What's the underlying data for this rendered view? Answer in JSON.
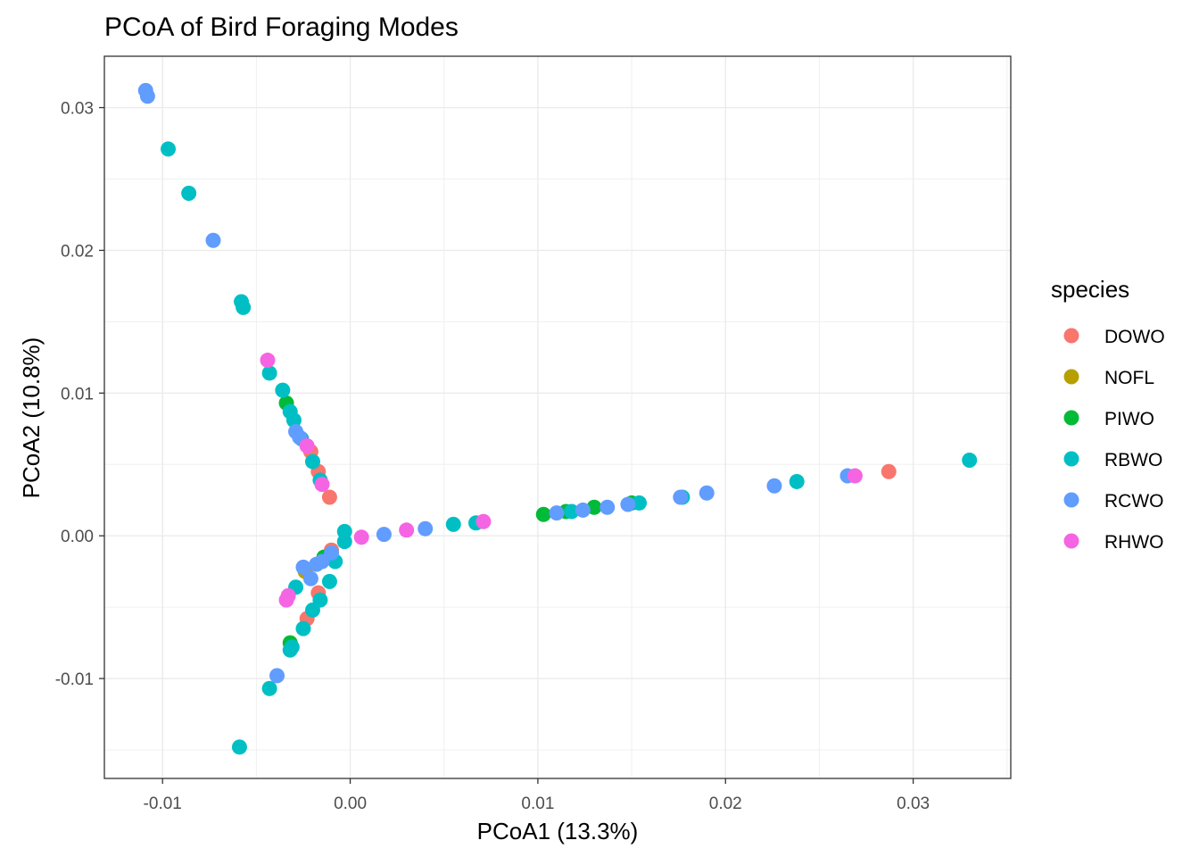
{
  "chart_data": {
    "type": "scatter",
    "title": "PCoA of Bird Foraging Modes",
    "xlabel": "PCoA1 (13.3%)",
    "ylabel": "PCoA2 (10.8%)",
    "xlim": [
      -0.0131,
      0.0352
    ],
    "ylim": [
      -0.017,
      0.0336
    ],
    "x_ticks": [
      -0.01,
      0.0,
      0.01,
      0.02,
      0.03
    ],
    "x_tick_labels": [
      "-0.01",
      "0.00",
      "0.01",
      "0.02",
      "0.03"
    ],
    "y_ticks": [
      -0.01,
      0.0,
      0.01,
      0.02,
      0.03
    ],
    "y_tick_labels": [
      "-0.01",
      "0.00",
      "0.01",
      "0.02",
      "0.03"
    ],
    "grid": true,
    "legend": {
      "title": "species",
      "position": "right"
    },
    "series": [
      {
        "name": "DOWO",
        "color": "#F8766D",
        "points": [
          [
            0.0287,
            0.0045
          ],
          [
            -0.0011,
            0.0027
          ],
          [
            -0.0017,
            0.0045
          ],
          [
            -0.0021,
            0.0059
          ],
          [
            -0.001,
            -0.001
          ],
          [
            -0.0017,
            -0.004
          ],
          [
            -0.0023,
            -0.0058
          ],
          [
            -0.0013,
            -0.0015
          ]
        ]
      },
      {
        "name": "NOFL",
        "color": "#B79F00",
        "points": [
          [
            -0.0024,
            -0.0025
          ]
        ]
      },
      {
        "name": "PIWO",
        "color": "#00BA38",
        "points": [
          [
            0.0103,
            0.0015
          ],
          [
            0.0115,
            0.0017
          ],
          [
            0.013,
            0.002
          ],
          [
            0.015,
            0.0023
          ],
          [
            -0.0034,
            0.0093
          ],
          [
            -0.0014,
            -0.0015
          ],
          [
            -0.0032,
            -0.0075
          ]
        ]
      },
      {
        "name": "RBWO",
        "color": "#00BFC4",
        "points": [
          [
            -0.0097,
            0.0271
          ],
          [
            -0.0086,
            0.024
          ],
          [
            -0.0058,
            0.0164
          ],
          [
            -0.0057,
            0.016
          ],
          [
            -0.0043,
            0.0114
          ],
          [
            -0.0036,
            0.0102
          ],
          [
            -0.0032,
            0.0087
          ],
          [
            -0.003,
            0.0081
          ],
          [
            -0.0026,
            0.0068
          ],
          [
            -0.002,
            0.0052
          ],
          [
            -0.0016,
            0.0039
          ],
          [
            -0.0003,
            0.0003
          ],
          [
            -0.0003,
            -0.0004
          ],
          [
            -0.0008,
            -0.0018
          ],
          [
            -0.0011,
            -0.0032
          ],
          [
            -0.0016,
            -0.0045
          ],
          [
            -0.002,
            -0.0052
          ],
          [
            -0.0025,
            -0.0065
          ],
          [
            -0.0031,
            -0.0078
          ],
          [
            -0.0032,
            -0.008
          ],
          [
            -0.0029,
            -0.0036
          ],
          [
            -0.0043,
            -0.0107
          ],
          [
            -0.0059,
            -0.0148
          ],
          [
            0.0055,
            0.0008
          ],
          [
            0.0067,
            0.0009
          ],
          [
            0.0118,
            0.0017
          ],
          [
            0.0154,
            0.0023
          ],
          [
            0.0177,
            0.0027
          ],
          [
            0.0238,
            0.0038
          ],
          [
            0.033,
            0.0053
          ]
        ]
      },
      {
        "name": "RCWO",
        "color": "#619CFF",
        "points": [
          [
            -0.0109,
            0.0312
          ],
          [
            -0.0108,
            0.0308
          ],
          [
            -0.0073,
            0.0207
          ],
          [
            -0.0029,
            0.0073
          ],
          [
            -0.0027,
            0.0069
          ],
          [
            -0.0021,
            -0.003
          ],
          [
            -0.0018,
            -0.002
          ],
          [
            -0.0015,
            -0.0018
          ],
          [
            -0.001,
            -0.0012
          ],
          [
            -0.0025,
            -0.0022
          ],
          [
            -0.0039,
            -0.0098
          ],
          [
            0.0018,
            0.0001
          ],
          [
            0.004,
            0.0005
          ],
          [
            0.011,
            0.0016
          ],
          [
            0.0124,
            0.0018
          ],
          [
            0.0137,
            0.002
          ],
          [
            0.0148,
            0.0022
          ],
          [
            0.0176,
            0.0027
          ],
          [
            0.019,
            0.003
          ],
          [
            0.0226,
            0.0035
          ],
          [
            0.0265,
            0.0042
          ]
        ]
      },
      {
        "name": "RHWO",
        "color": "#F564E3",
        "points": [
          [
            -0.0044,
            0.0123
          ],
          [
            -0.0023,
            0.0063
          ],
          [
            -0.0015,
            0.0036
          ],
          [
            0.0006,
            -0.0001
          ],
          [
            0.003,
            0.0004
          ],
          [
            0.0071,
            0.001
          ],
          [
            0.0269,
            0.0042
          ],
          [
            -0.0033,
            -0.0042
          ],
          [
            -0.0034,
            -0.0045
          ]
        ]
      }
    ]
  }
}
